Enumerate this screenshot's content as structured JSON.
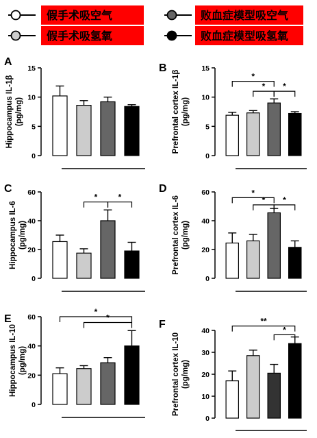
{
  "legend": {
    "items": [
      {
        "label": "假手术吸空气",
        "color": "#ffffff"
      },
      {
        "label": "败血症模型吸空气",
        "color": "#666666"
      },
      {
        "label": "假手术吸氢氧",
        "color": "#cccccc"
      },
      {
        "label": "败血症模型吸氢氧",
        "color": "#000000"
      }
    ],
    "box_color": "#ff0000"
  },
  "chart_data": [
    {
      "panel": "A",
      "type": "bar",
      "ylabel_line1": "Hippocampus IL-1β",
      "ylabel_line2": "(pg/mg)",
      "ylim": [
        0,
        15
      ],
      "yticks": [
        "0",
        "5",
        "10",
        "15"
      ],
      "values": [
        10.2,
        8.6,
        9.2,
        8.4
      ],
      "errors": [
        1.7,
        0.8,
        0.8,
        0.3
      ],
      "colors": [
        "#ffffff",
        "#cccccc",
        "#666666",
        "#000000"
      ],
      "sig": []
    },
    {
      "panel": "B",
      "type": "bar",
      "ylabel_line1": "Prefrontal cortex  IL-1β",
      "ylabel_line2": "(pg/mg)",
      "ylim": [
        0,
        15
      ],
      "yticks": [
        "0",
        "5",
        "10",
        "15"
      ],
      "values": [
        6.9,
        7.3,
        9.0,
        7.2
      ],
      "errors": [
        0.5,
        0.4,
        0.7,
        0.3
      ],
      "colors": [
        "#ffffff",
        "#cccccc",
        "#666666",
        "#000000"
      ],
      "sig": [
        {
          "from": 0,
          "to": 2,
          "y": 12.7,
          "label": "*"
        },
        {
          "from": 1,
          "to": 2,
          "y": 11.0,
          "label": "*"
        },
        {
          "from": 2,
          "to": 3,
          "y": 11.0,
          "label": "*"
        }
      ]
    },
    {
      "panel": "C",
      "type": "bar",
      "ylabel_line1": "Hippocampus IL-6",
      "ylabel_line2": "(pg/mg)",
      "ylim": [
        0,
        60
      ],
      "yticks": [
        "0",
        "20",
        "40",
        "60"
      ],
      "values": [
        25.5,
        17.5,
        40.0,
        19.0
      ],
      "errors": [
        4.5,
        3.0,
        7.5,
        6.0
      ],
      "colors": [
        "#ffffff",
        "#cccccc",
        "#666666",
        "#000000"
      ],
      "sig": [
        {
          "from": 1,
          "to": 2,
          "y": 53,
          "label": "*"
        },
        {
          "from": 2,
          "to": 3,
          "y": 53,
          "label": "*"
        }
      ]
    },
    {
      "panel": "D",
      "type": "bar",
      "ylabel_line1": "Prefrontal cortex IL-6",
      "ylabel_line2": "(pg/mg)",
      "ylim": [
        0,
        60
      ],
      "yticks": [
        "0",
        "20",
        "40",
        "60"
      ],
      "values": [
        24.5,
        26.0,
        45.5,
        21.5
      ],
      "errors": [
        7.0,
        4.5,
        3.0,
        4.5
      ],
      "colors": [
        "#ffffff",
        "#cccccc",
        "#666666",
        "#000000"
      ],
      "sig": [
        {
          "from": 0,
          "to": 2,
          "y": 56,
          "label": "*"
        },
        {
          "from": 1,
          "to": 2,
          "y": 51,
          "label": "*"
        },
        {
          "from": 2,
          "to": 3,
          "y": 51,
          "label": "*"
        }
      ]
    },
    {
      "panel": "E",
      "type": "bar",
      "ylabel_line1": "Hippocampus IL-10",
      "ylabel_line2": "(pg/mg)",
      "ylim": [
        0,
        60
      ],
      "yticks": [
        "0",
        "20",
        "40",
        "60"
      ],
      "values": [
        21.0,
        24.5,
        28.5,
        40.0
      ],
      "errors": [
        4.0,
        2.0,
        3.5,
        10.5
      ],
      "colors": [
        "#ffffff",
        "#cccccc",
        "#666666",
        "#000000"
      ],
      "sig": [
        {
          "from": 0,
          "to": 3,
          "y": 60,
          "label": "*"
        },
        {
          "from": 1,
          "to": 3,
          "y": 56,
          "label": "*"
        }
      ]
    },
    {
      "panel": "F",
      "type": "bar",
      "ylabel_line1": "Prefrontal cortex IL-10",
      "ylabel_line2": "(pg/mg)",
      "ylim": [
        0,
        40
      ],
      "yticks": [
        "0",
        "10",
        "20",
        "30",
        "40"
      ],
      "values": [
        17.0,
        28.5,
        20.5,
        34.0
      ],
      "errors": [
        4.5,
        2.5,
        4.0,
        3.0
      ],
      "colors": [
        "#ffffff",
        "#cccccc",
        "#333333",
        "#000000"
      ],
      "sig": [
        {
          "from": 0,
          "to": 3,
          "y": 42,
          "label": "**"
        },
        {
          "from": 2,
          "to": 3,
          "y": 38,
          "label": "*"
        }
      ]
    }
  ]
}
